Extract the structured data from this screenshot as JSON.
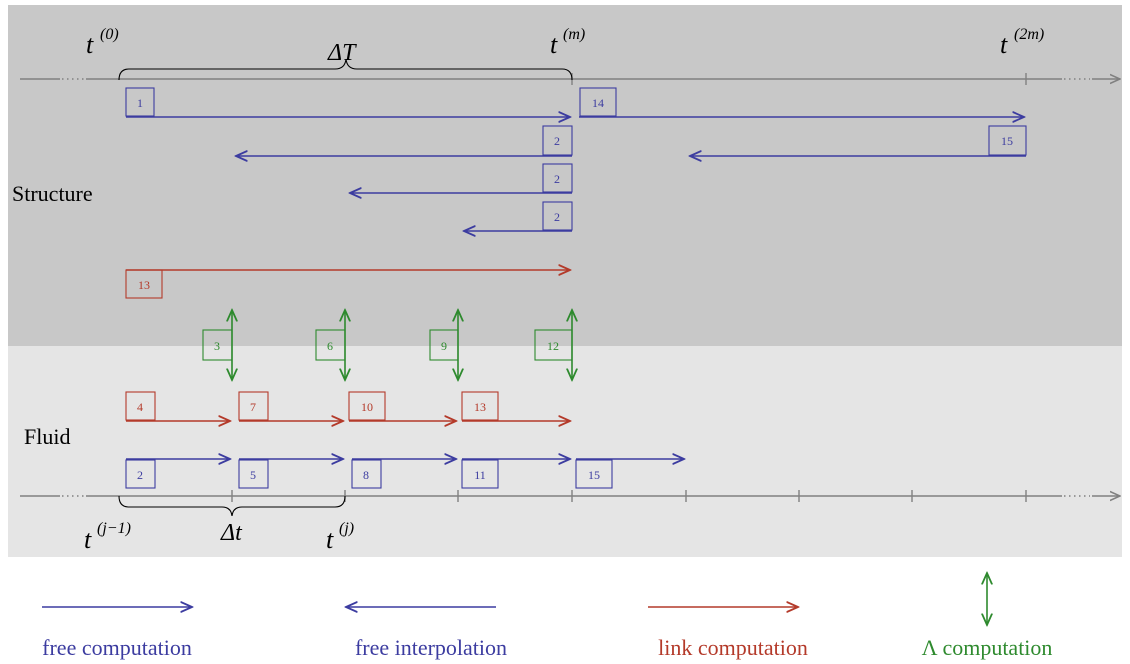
{
  "colors": {
    "structure_bg": "#c8c8c8",
    "fluid_bg": "#e5e5e5",
    "free": "#3c3ca0",
    "link": "#b43a2a",
    "lambda": "#2e8a2e",
    "axis": "#808080"
  },
  "labels": {
    "structure": "Structure",
    "fluid": "Fluid"
  },
  "top_axis": {
    "t0": "t",
    "t0_sup": "(0)",
    "tm": "t",
    "tm_sup": "(m)",
    "t2m": "t",
    "t2m_sup": "(2m)",
    "delta_T": "ΔT"
  },
  "bottom_axis": {
    "tj1": "t",
    "tj1_sup": "(j−1)",
    "tj": "t",
    "tj_sup": "(j)",
    "delta_t": "Δt"
  },
  "steps": {
    "structure_free_forward": [
      "1",
      "14"
    ],
    "structure_interp": [
      "2",
      "2",
      "2",
      "15"
    ],
    "structure_link": "13",
    "lambda": [
      "3",
      "6",
      "9",
      "12"
    ],
    "fluid_link": [
      "4",
      "7",
      "10",
      "13"
    ],
    "fluid_free": [
      "2",
      "5",
      "8",
      "11",
      "15"
    ]
  },
  "legend": {
    "free_computation": "free computation",
    "free_interpolation": "free interpolation",
    "link_computation": "link computation",
    "lambda_computation": "Λ computation"
  }
}
